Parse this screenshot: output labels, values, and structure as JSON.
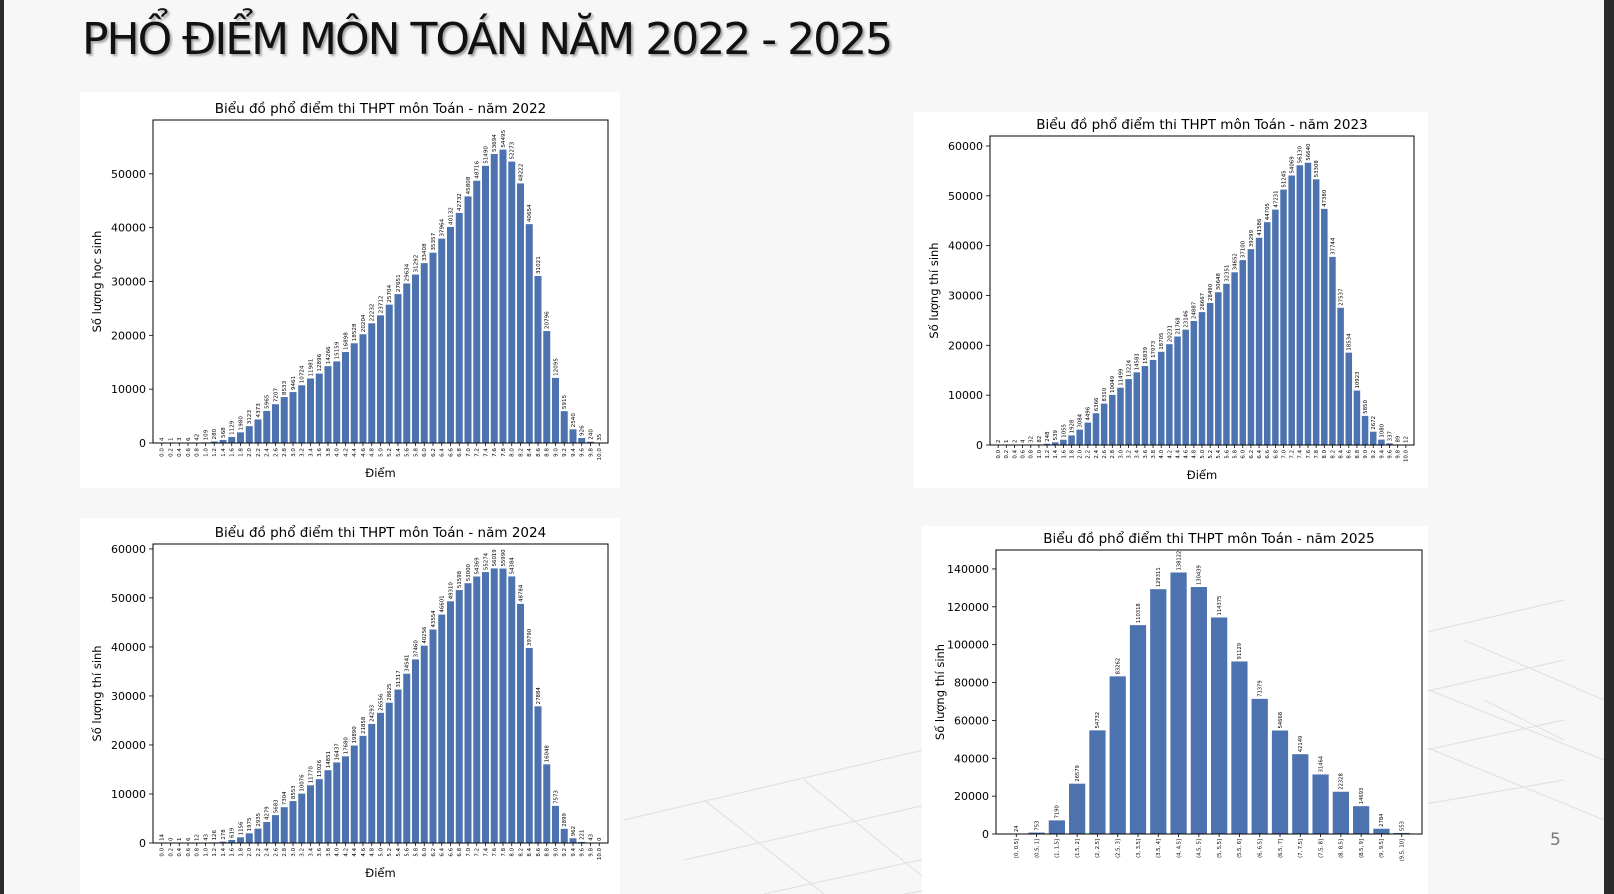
{
  "slide": {
    "title": "PHỔ ĐIỂM MÔN TOÁN NĂM 2022 - 2025",
    "page_number": "5"
  },
  "colors": {
    "bar": "#4c72b0",
    "axis": "#000000",
    "background": "#ffffff"
  },
  "chart_data": [
    {
      "type": "bar",
      "title": "Biểu đồ phổ điểm thi THPT môn Toán - năm 2022",
      "xlabel": "Điểm",
      "ylabel": "Số lượng học sinh",
      "ylim": [
        0,
        60000
      ],
      "yticks": [
        0,
        10000,
        20000,
        30000,
        40000,
        50000
      ],
      "categories": [
        "0.0",
        "0.2",
        "0.4",
        "0.6",
        "0.8",
        "1.0",
        "1.2",
        "1.4",
        "1.6",
        "1.8",
        "2.0",
        "2.2",
        "2.4",
        "2.6",
        "2.8",
        "3.0",
        "3.2",
        "3.4",
        "3.6",
        "3.8",
        "4.0",
        "4.2",
        "4.4",
        "4.6",
        "4.8",
        "5.0",
        "5.2",
        "5.4",
        "5.6",
        "5.8",
        "6.0",
        "6.2",
        "6.4",
        "6.6",
        "6.8",
        "7.0",
        "7.2",
        "7.4",
        "7.6",
        "7.8",
        "8.0",
        "8.2",
        "8.4",
        "8.6",
        "8.8",
        "9.0",
        "9.2",
        "9.4",
        "9.6",
        "9.8",
        "10.0"
      ],
      "values": [
        4,
        1,
        3,
        6,
        42,
        109,
        280,
        568,
        1129,
        1980,
        3123,
        4373,
        5965,
        7207,
        8533,
        9461,
        10724,
        11981,
        12896,
        14266,
        15159,
        16898,
        18528,
        20204,
        22232,
        23712,
        25704,
        27651,
        29634,
        31292,
        33408,
        35357,
        37964,
        40132,
        42732,
        45808,
        48716,
        51490,
        53694,
        54495,
        52273,
        48222,
        40654,
        31021,
        20796,
        12095,
        5915,
        2540,
        926,
        240,
        35
      ],
      "bar_labels": [
        "4",
        "1",
        "3",
        "6",
        "42",
        "109",
        "280",
        "568",
        "1129",
        "1980",
        "3123",
        "4373",
        "5965",
        "7207",
        "8533",
        "9461",
        "10724",
        "11981",
        "12896",
        "14266",
        "15159",
        "16898",
        "18528",
        "20204",
        "22232",
        "23712",
        "25704",
        "27651",
        "29634",
        "31292",
        "33408",
        "35357",
        "37964",
        "40132",
        "42732",
        "45808",
        "48716",
        "51490",
        "53694",
        "54495",
        "52273",
        "48222",
        "40654",
        "31021",
        "20796",
        "12095",
        "5915",
        "2540",
        "926",
        "240",
        "35"
      ],
      "grid": false,
      "legend": "none"
    },
    {
      "type": "bar",
      "title": "Biểu đồ phổ điểm thi THPT môn Toán - năm 2023",
      "xlabel": "Điểm",
      "ylabel": "Số lượng thí sinh",
      "ylim": [
        0,
        62000
      ],
      "yticks": [
        0,
        10000,
        20000,
        30000,
        40000,
        50000,
        60000
      ],
      "categories": [
        "0.0",
        "0.2",
        "0.4",
        "0.6",
        "0.8",
        "1.0",
        "1.2",
        "1.4",
        "1.6",
        "1.8",
        "2.0",
        "2.2",
        "2.4",
        "2.6",
        "2.8",
        "3.0",
        "3.2",
        "3.4",
        "3.6",
        "3.8",
        "4.0",
        "4.2",
        "4.4",
        "4.6",
        "4.8",
        "5.0",
        "5.2",
        "5.4",
        "5.6",
        "5.8",
        "6.0",
        "6.2",
        "6.4",
        "6.6",
        "6.8",
        "7.0",
        "7.2",
        "7.4",
        "7.6",
        "7.8",
        "8.0",
        "8.2",
        "8.4",
        "8.6",
        "8.8",
        "9.0",
        "9.2",
        "9.4",
        "9.6",
        "9.8",
        "10.0"
      ],
      "values": [
        2,
        1,
        2,
        4,
        32,
        82,
        248,
        539,
        1055,
        1928,
        3084,
        4496,
        6366,
        8310,
        10049,
        11499,
        13224,
        14581,
        15839,
        17073,
        18705,
        20231,
        21768,
        23146,
        24887,
        26667,
        28490,
        30648,
        32351,
        34652,
        37100,
        39299,
        41586,
        44705,
        47231,
        51245,
        54069,
        56130,
        56640,
        53308,
        47380,
        37744,
        27537,
        18534,
        10923,
        5850,
        2672,
        1080,
        337,
        89,
        12
      ],
      "bar_labels": [
        "2",
        "1",
        "2",
        "4",
        "32",
        "82",
        "248",
        "539",
        "1055",
        "1928",
        "3084",
        "4496",
        "6366",
        "8310",
        "10049",
        "11499",
        "13224",
        "14581",
        "15839",
        "17073",
        "18705",
        "20231",
        "21768",
        "23146",
        "24887",
        "26667",
        "28490",
        "30648",
        "32351",
        "34652",
        "37100",
        "39299",
        "41586",
        "44705",
        "47231",
        "51245",
        "54069",
        "56130",
        "56640",
        "53308",
        "47380",
        "37744",
        "27537",
        "18534",
        "10923",
        "5850",
        "2672",
        "1080",
        "337",
        "89",
        "12"
      ],
      "grid": false,
      "legend": "none"
    },
    {
      "type": "bar",
      "title": "Biểu đồ phổ điểm thi THPT môn Toán - năm 2024",
      "xlabel": "Điểm",
      "ylabel": "Số lượng thí sinh",
      "ylim": [
        0,
        61000
      ],
      "yticks": [
        0,
        10000,
        20000,
        30000,
        40000,
        50000,
        60000
      ],
      "categories": [
        "0.0",
        "0.2",
        "0.4",
        "0.6",
        "0.8",
        "1.0",
        "1.2",
        "1.4",
        "1.6",
        "1.8",
        "2.0",
        "2.2",
        "2.4",
        "2.6",
        "2.8",
        "3.0",
        "3.2",
        "3.4",
        "3.6",
        "3.8",
        "4.0",
        "4.2",
        "4.4",
        "4.6",
        "4.8",
        "5.0",
        "5.2",
        "5.4",
        "5.6",
        "5.8",
        "6.0",
        "6.2",
        "6.4",
        "6.6",
        "6.8",
        "7.0",
        "7.2",
        "7.4",
        "7.6",
        "7.8",
        "8.0",
        "8.2",
        "8.4",
        "8.6",
        "8.8",
        "9.0",
        "9.2",
        "9.4",
        "9.6",
        "9.8",
        "10.0"
      ],
      "values": [
        14,
        0,
        1,
        6,
        12,
        43,
        126,
        278,
        619,
        1156,
        1975,
        2935,
        4279,
        5683,
        7304,
        8553,
        10076,
        11770,
        13026,
        14851,
        16437,
        17680,
        19890,
        21858,
        24293,
        26556,
        28625,
        31317,
        34541,
        37460,
        40256,
        43554,
        46601,
        49310,
        51598,
        53000,
        54369,
        55274,
        56019,
        55990,
        54384,
        48784,
        39790,
        27884,
        16048,
        7573,
        2899,
        962,
        221,
        43,
        0
      ],
      "bar_labels": [
        "14",
        "0",
        "1",
        "6",
        "12",
        "43",
        "126",
        "278",
        "619",
        "1156",
        "1975",
        "2935",
        "4279",
        "5683",
        "7304",
        "8553",
        "10076",
        "11770",
        "13026",
        "14851",
        "16437",
        "17680",
        "19890",
        "21858",
        "24293",
        "26556",
        "28625",
        "31317",
        "34541",
        "37460",
        "40256",
        "43554",
        "46601",
        "49310",
        "51598",
        "53000",
        "54369",
        "55274",
        "56019",
        "55990",
        "54384",
        "48784",
        "39790",
        "27884",
        "16048",
        "7573",
        "2899",
        "962",
        "221",
        "43",
        "0"
      ],
      "grid": false,
      "legend": "none"
    },
    {
      "type": "bar",
      "title": "Biểu đồ phổ điểm thi THPT môn Toán - năm 2025",
      "xlabel": "",
      "ylabel": "Số lượng thí sinh",
      "ylim": [
        0,
        150000
      ],
      "yticks": [
        0,
        20000,
        40000,
        60000,
        80000,
        100000,
        120000,
        140000
      ],
      "categories": [
        "[0, 0.5]",
        "(0.5, 1]",
        "(1, 1.5]",
        "(1.5, 2]",
        "(2, 2.5]",
        "(2.5, 3]",
        "(3, 3.5]",
        "(3.5, 4]",
        "(4, 4.5]",
        "(4.5, 5]",
        "(5, 5.5]",
        "(5.5, 6]",
        "(6, 6.5]",
        "(6.5, 7]",
        "(7, 7.5]",
        "(7.5, 8]",
        "(8, 8.5]",
        "(8.5, 9]",
        "(9, 9.5]",
        "(9.5, 10]"
      ],
      "values": [
        24,
        753,
        7190,
        26579,
        54732,
        83262,
        110318,
        129311,
        138122,
        130439,
        114375,
        91129,
        71379,
        54668,
        42149,
        31464,
        22328,
        14693,
        2784,
        553
      ],
      "bar_labels": [
        "24",
        "753",
        "7190",
        "26579",
        "54732",
        "83262",
        "110318",
        "129311",
        "138122",
        "130439",
        "114375",
        "91129",
        "71379",
        "54668",
        "42149",
        "31464",
        "22328",
        "14693",
        "2784",
        "553"
      ],
      "grid": false,
      "legend": "none"
    }
  ]
}
